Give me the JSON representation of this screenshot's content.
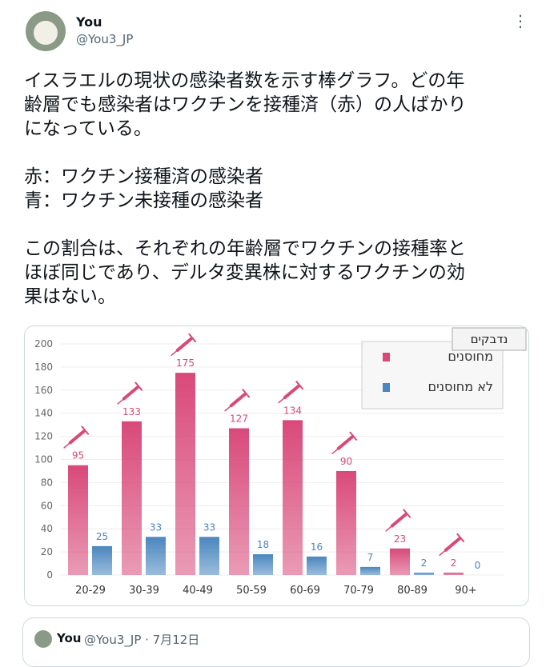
{
  "tweet": {
    "name": "You",
    "handle": "@You3_JP",
    "paragraphs": [
      [
        "イスラエルの現状の感染者数を示す棒グラフ。どの年",
        "齢層でも感染者はワクチンを接種済（赤）の人ばかり",
        "になっている。"
      ],
      [
        "赤：ワクチン接種済の感染者",
        "青：ワクチン未接種の感染者"
      ],
      [
        "この割合は、それぞれの年齢層でワクチンの接種率と",
        "ほぼ同じであり、デルタ変異株に対するワクチンの効",
        "果はない。"
      ]
    ]
  },
  "chart_data": {
    "type": "bar",
    "legend_title": "נדבקים",
    "categories": [
      "20-29",
      "30-39",
      "40-49",
      "50-59",
      "60-69",
      "70-79",
      "80-89",
      "90+"
    ],
    "series": [
      {
        "name": "מחוסנים",
        "color": "#d9497a",
        "values": [
          95,
          133,
          175,
          127,
          134,
          90,
          23,
          2
        ]
      },
      {
        "name": "לא מחוסנים",
        "color": "#4a86bf",
        "values": [
          25,
          33,
          33,
          18,
          16,
          7,
          2,
          0
        ]
      }
    ],
    "ylim": [
      0,
      200
    ],
    "yticks": [
      0,
      20,
      40,
      60,
      80,
      100,
      120,
      140,
      160,
      180,
      200
    ],
    "grid": true,
    "legend": "upper right"
  },
  "quoted": {
    "name": "You",
    "meta": "@You3_JP · 7月12日"
  }
}
